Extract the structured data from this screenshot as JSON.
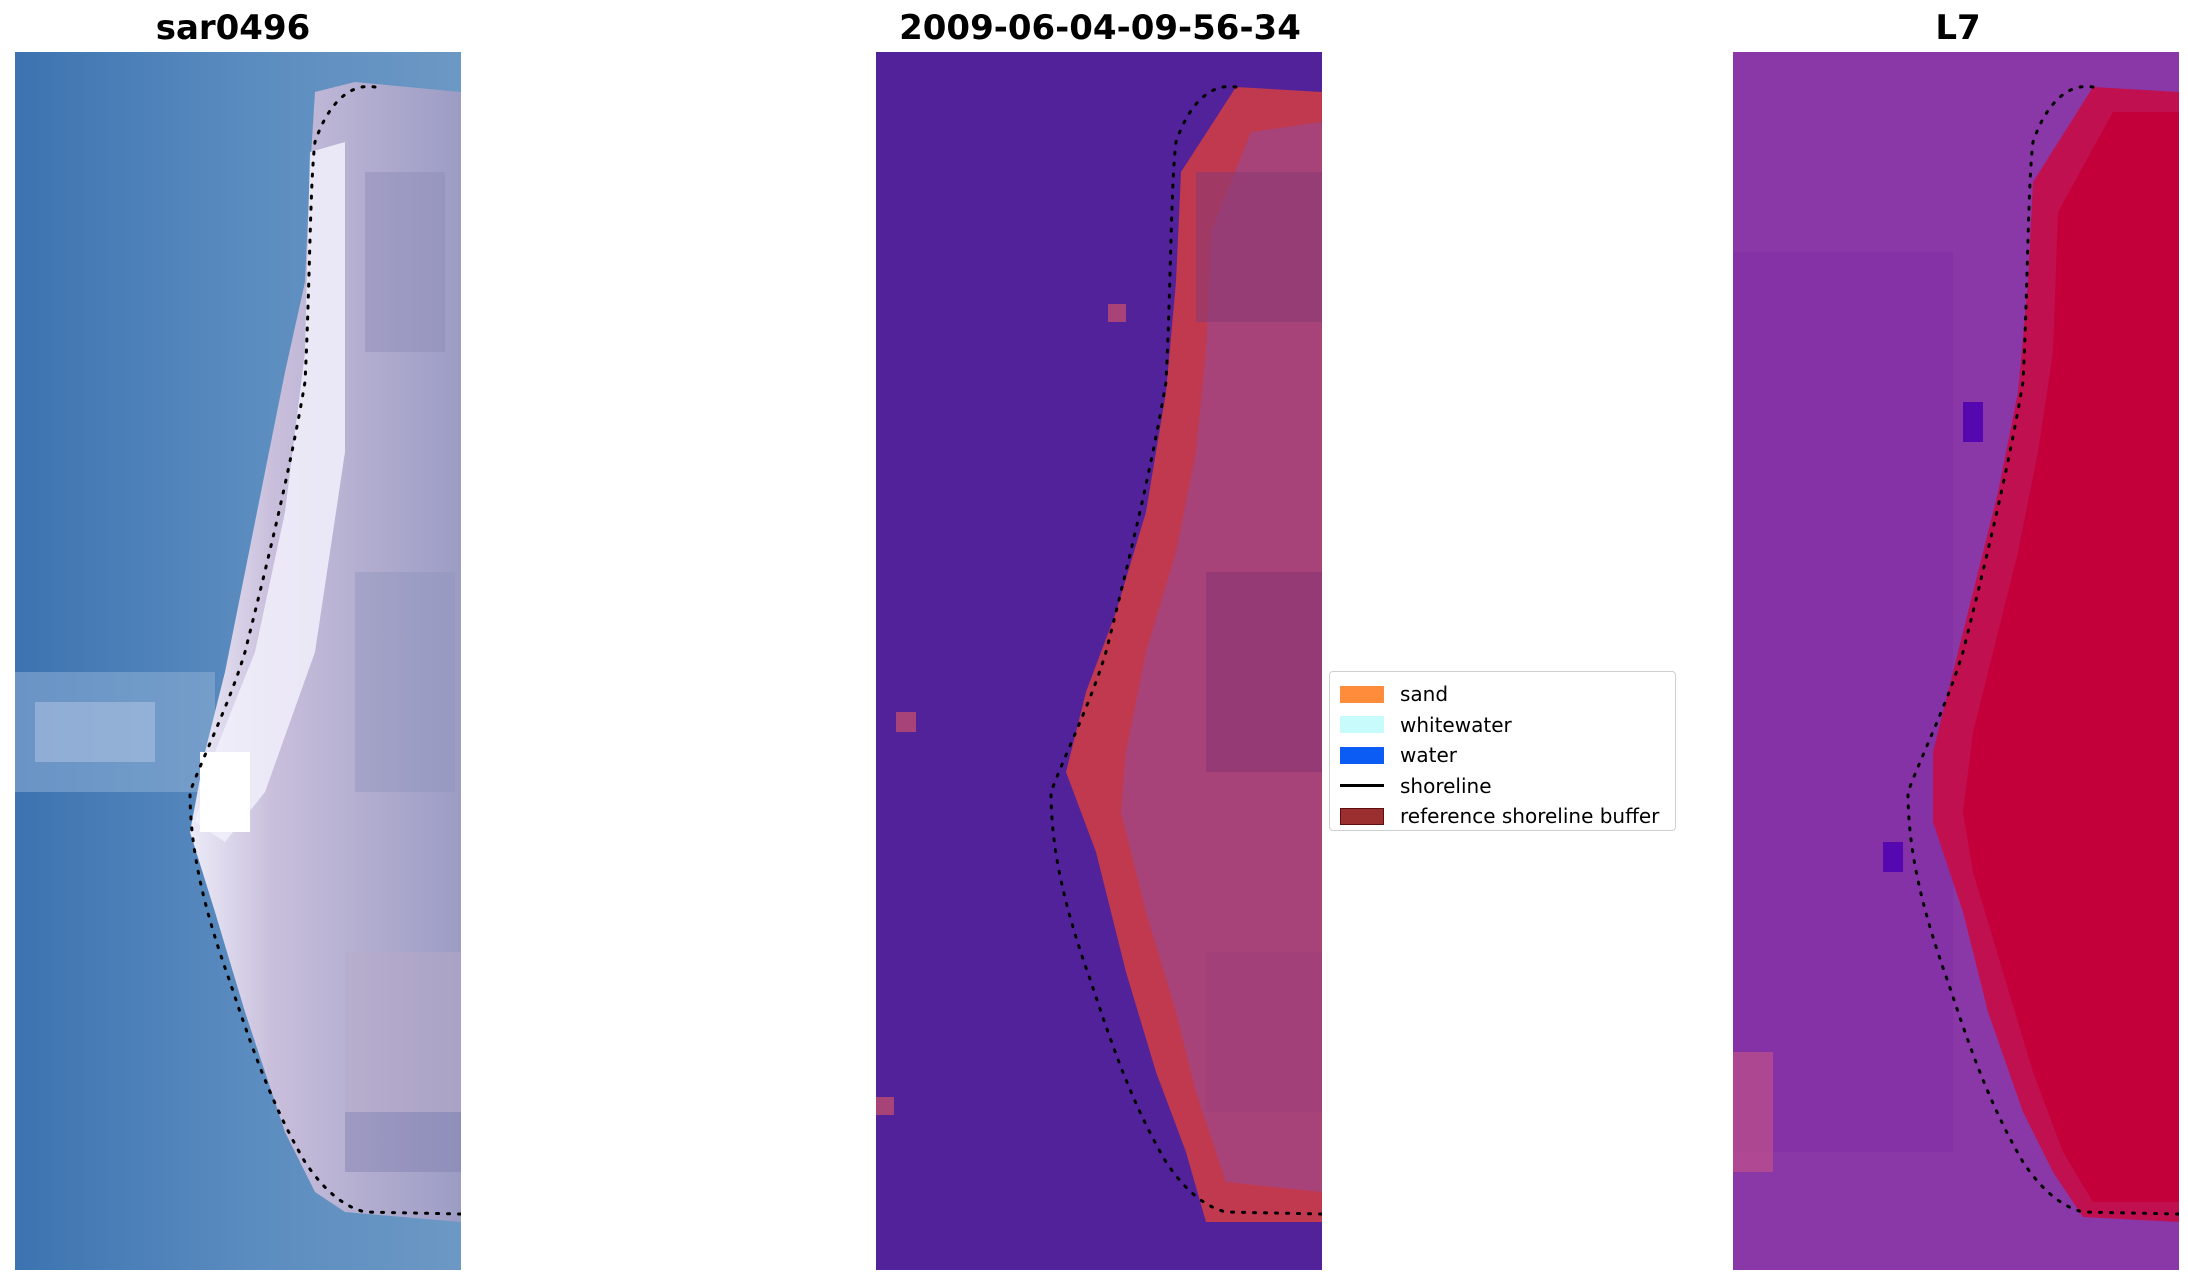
{
  "panels": [
    {
      "title": "sar0496",
      "kind": "rgb"
    },
    {
      "title": "2009-06-04-09-56-34",
      "kind": "classified"
    },
    {
      "title": "L7",
      "kind": "index"
    }
  ],
  "legend": {
    "items": [
      {
        "label": "sand",
        "color": "#ff8c3a",
        "type": "patch"
      },
      {
        "label": "whitewater",
        "color": "#c8fbfb",
        "type": "patch"
      },
      {
        "label": "water",
        "color": "#0a5cf5",
        "type": "patch"
      },
      {
        "label": "shoreline",
        "color": "#000000",
        "type": "line"
      },
      {
        "label": "reference shoreline buffer",
        "color": "#9b2f2f",
        "type": "patch"
      }
    ]
  },
  "colors": {
    "rgb_water": "#4a82b8",
    "classified_background": "#52229a",
    "buffer": "#c0394f",
    "index_water": "#8a38a8",
    "index_land": "#c0063a"
  }
}
